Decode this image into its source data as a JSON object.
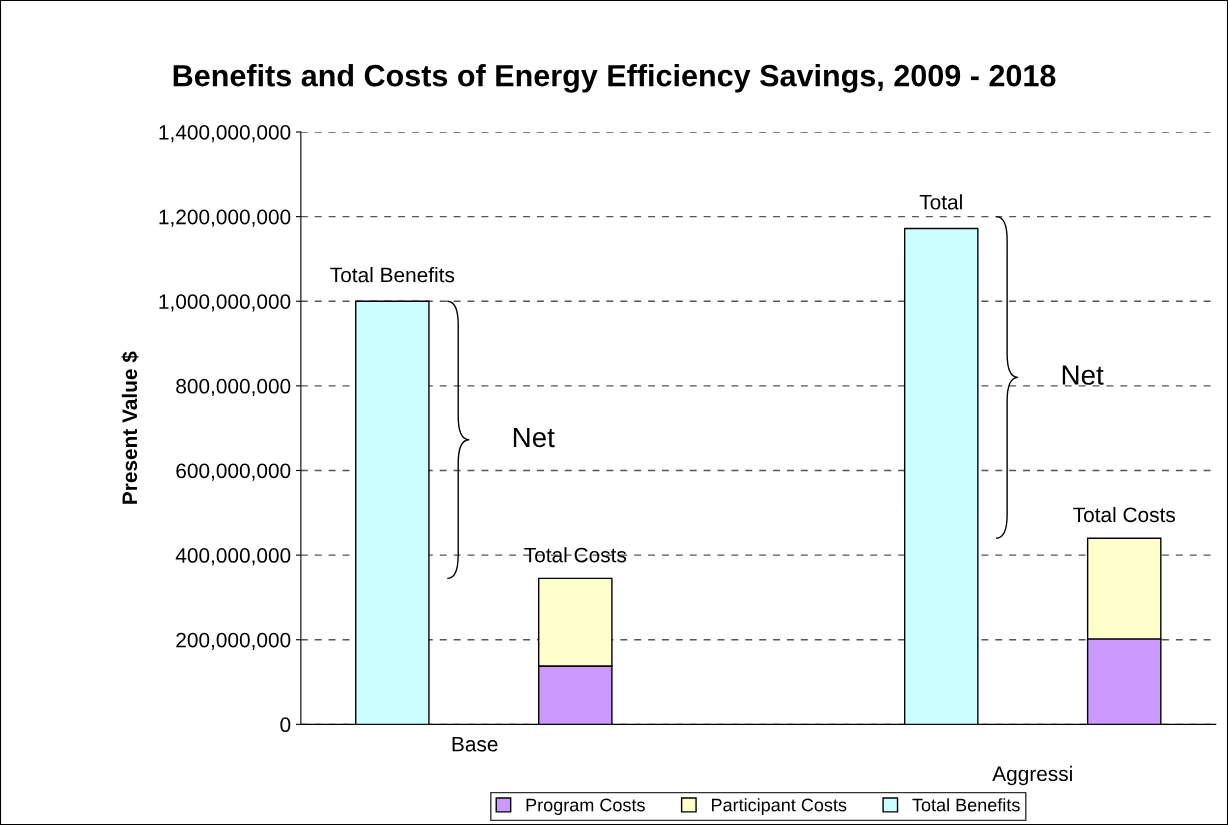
{
  "chart_data": {
    "type": "bar",
    "title": "Benefits and Costs of Energy Efficiency Savings, 2009 - 2018",
    "ylabel": "Present Value $",
    "categories": [
      null,
      null,
      null,
      null,
      null
    ],
    "stacked": true,
    "series": [
      {
        "name": "Program Costs",
        "color": "#cc99ff",
        "values": [
          null,
          138000000,
          null,
          null,
          202000000
        ]
      },
      {
        "name": "Participant Costs",
        "color": "#ffffcc",
        "values": [
          null,
          207000000,
          null,
          null,
          238000000
        ]
      },
      {
        "name": "Total Benefits",
        "color": "#ccffff",
        "values": [
          1000000000,
          null,
          null,
          1172000000,
          null
        ]
      }
    ],
    "ylim": [
      0,
      1400000000
    ],
    "yticks": [
      {
        "value": 0,
        "label": "0"
      },
      {
        "value": 200000000,
        "label": "200,000,000"
      },
      {
        "value": 400000000,
        "label": "400,000,000"
      },
      {
        "value": 600000000,
        "label": "600,000,000"
      },
      {
        "value": 800000000,
        "label": "800,000,000"
      },
      {
        "value": 1000000000,
        "label": "1,000,000,000"
      },
      {
        "value": 1200000000,
        "label": "1,200,000,000"
      },
      {
        "value": 1400000000,
        "label": "1,400,000,000"
      }
    ],
    "grid": "y",
    "legend": "bottom",
    "annotations": [
      "Total Benefits",
      "Total Costs",
      "Net",
      "Total",
      "Total Costs",
      "Net",
      "Base",
      "Aggressi"
    ]
  }
}
